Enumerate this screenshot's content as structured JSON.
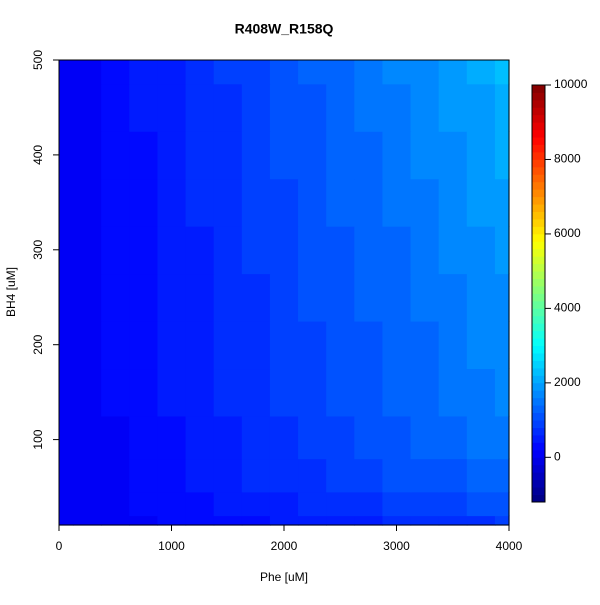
{
  "chart_data": {
    "type": "filled-contour",
    "title": "R408W_R158Q",
    "x_label": "Phe [uM]",
    "y_label": "BH4 [uM]",
    "x": [
      0,
      250,
      500,
      750,
      1000,
      1250,
      1500,
      1750,
      2000,
      2250,
      2500,
      2750,
      3000,
      3250,
      3500,
      3750,
      4000
    ],
    "y": [
      10,
      30,
      60,
      100,
      150,
      200,
      250,
      300,
      350,
      400,
      450,
      500
    ],
    "z": [
      [
        0,
        50,
        100,
        150,
        200,
        250,
        310,
        360,
        410,
        460,
        510,
        560,
        610,
        660,
        710,
        760,
        810
      ],
      [
        0,
        70,
        140,
        210,
        280,
        340,
        410,
        480,
        550,
        620,
        690,
        760,
        830,
        890,
        960,
        1030,
        1100
      ],
      [
        0,
        90,
        170,
        260,
        340,
        430,
        510,
        600,
        680,
        770,
        850,
        940,
        1020,
        1110,
        1190,
        1280,
        1360
      ],
      [
        0,
        100,
        190,
        290,
        390,
        480,
        580,
        670,
        770,
        870,
        960,
        1060,
        1160,
        1250,
        1350,
        1440,
        1540
      ],
      [
        0,
        100,
        210,
        310,
        410,
        520,
        620,
        720,
        830,
        930,
        1030,
        1130,
        1240,
        1340,
        1440,
        1550,
        1650
      ],
      [
        0,
        110,
        210,
        320,
        430,
        540,
        640,
        750,
        860,
        970,
        1070,
        1180,
        1290,
        1390,
        1500,
        1610,
        1720
      ],
      [
        0,
        110,
        220,
        330,
        450,
        560,
        670,
        780,
        890,
        1000,
        1110,
        1230,
        1340,
        1450,
        1560,
        1670,
        1780
      ],
      [
        0,
        120,
        230,
        350,
        460,
        580,
        690,
        810,
        920,
        1040,
        1160,
        1270,
        1390,
        1500,
        1620,
        1730,
        1850
      ],
      [
        0,
        120,
        240,
        360,
        480,
        610,
        730,
        850,
        970,
        1090,
        1210,
        1330,
        1450,
        1570,
        1690,
        1820,
        1940
      ],
      [
        0,
        130,
        250,
        380,
        510,
        630,
        760,
        890,
        1010,
        1140,
        1270,
        1390,
        1520,
        1650,
        1770,
        1900,
        2020
      ],
      [
        0,
        130,
        260,
        400,
        530,
        660,
        790,
        920,
        1060,
        1190,
        1320,
        1450,
        1580,
        1720,
        1850,
        1980,
        2110
      ],
      [
        0,
        140,
        280,
        410,
        550,
        690,
        830,
        960,
        1100,
        1240,
        1380,
        1510,
        1650,
        1790,
        1930,
        2060,
        2200
      ]
    ],
    "xlim": [
      0,
      4000
    ],
    "ylim": [
      10,
      500
    ],
    "xticks": [
      0,
      1000,
      2000,
      3000,
      4000
    ],
    "yticks": [
      100,
      200,
      300,
      400,
      500
    ],
    "zlim": [
      -1200,
      10000
    ],
    "zticks": [
      0,
      2000,
      4000,
      6000,
      8000,
      10000
    ],
    "level_step": 200,
    "palette": [
      "#00007F",
      "#0000FF",
      "#007FFF",
      "#00FFFF",
      "#7FFF7F",
      "#FFFF00",
      "#FF7F00",
      "#FF0000",
      "#7F0000"
    ]
  }
}
